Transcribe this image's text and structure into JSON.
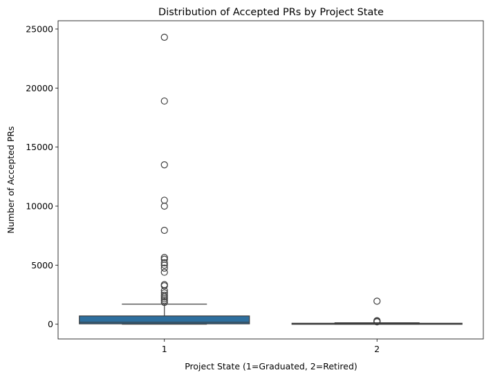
{
  "chart_data": {
    "type": "box",
    "title": "Distribution of Accepted PRs by Project State",
    "xlabel": "Project State (1=Graduated, 2=Retired)",
    "ylabel": "Number of Accepted PRs",
    "ylim": [
      -1250,
      25700
    ],
    "yticks": [
      0,
      5000,
      10000,
      15000,
      20000,
      25000
    ],
    "grid": false,
    "box_color": "#2e6f9e",
    "line_color": "#3c3c3c",
    "categories": [
      "1",
      "2"
    ],
    "boxes": [
      {
        "category": "1",
        "whislo": 0,
        "q1": 30,
        "median": 160,
        "q3": 700,
        "whishi": 1700,
        "fliers": [
          24300,
          18900,
          13500,
          10500,
          10000,
          7950,
          5650,
          5500,
          5200,
          5000,
          4750,
          4400,
          3350,
          3250,
          2850,
          2650,
          2450,
          2300,
          2150,
          2000,
          1850
        ]
      },
      {
        "category": "2",
        "whislo": 0,
        "q1": 10,
        "median": 35,
        "q3": 80,
        "whishi": 120,
        "fliers": [
          1950,
          300,
          250,
          200
        ]
      }
    ]
  }
}
